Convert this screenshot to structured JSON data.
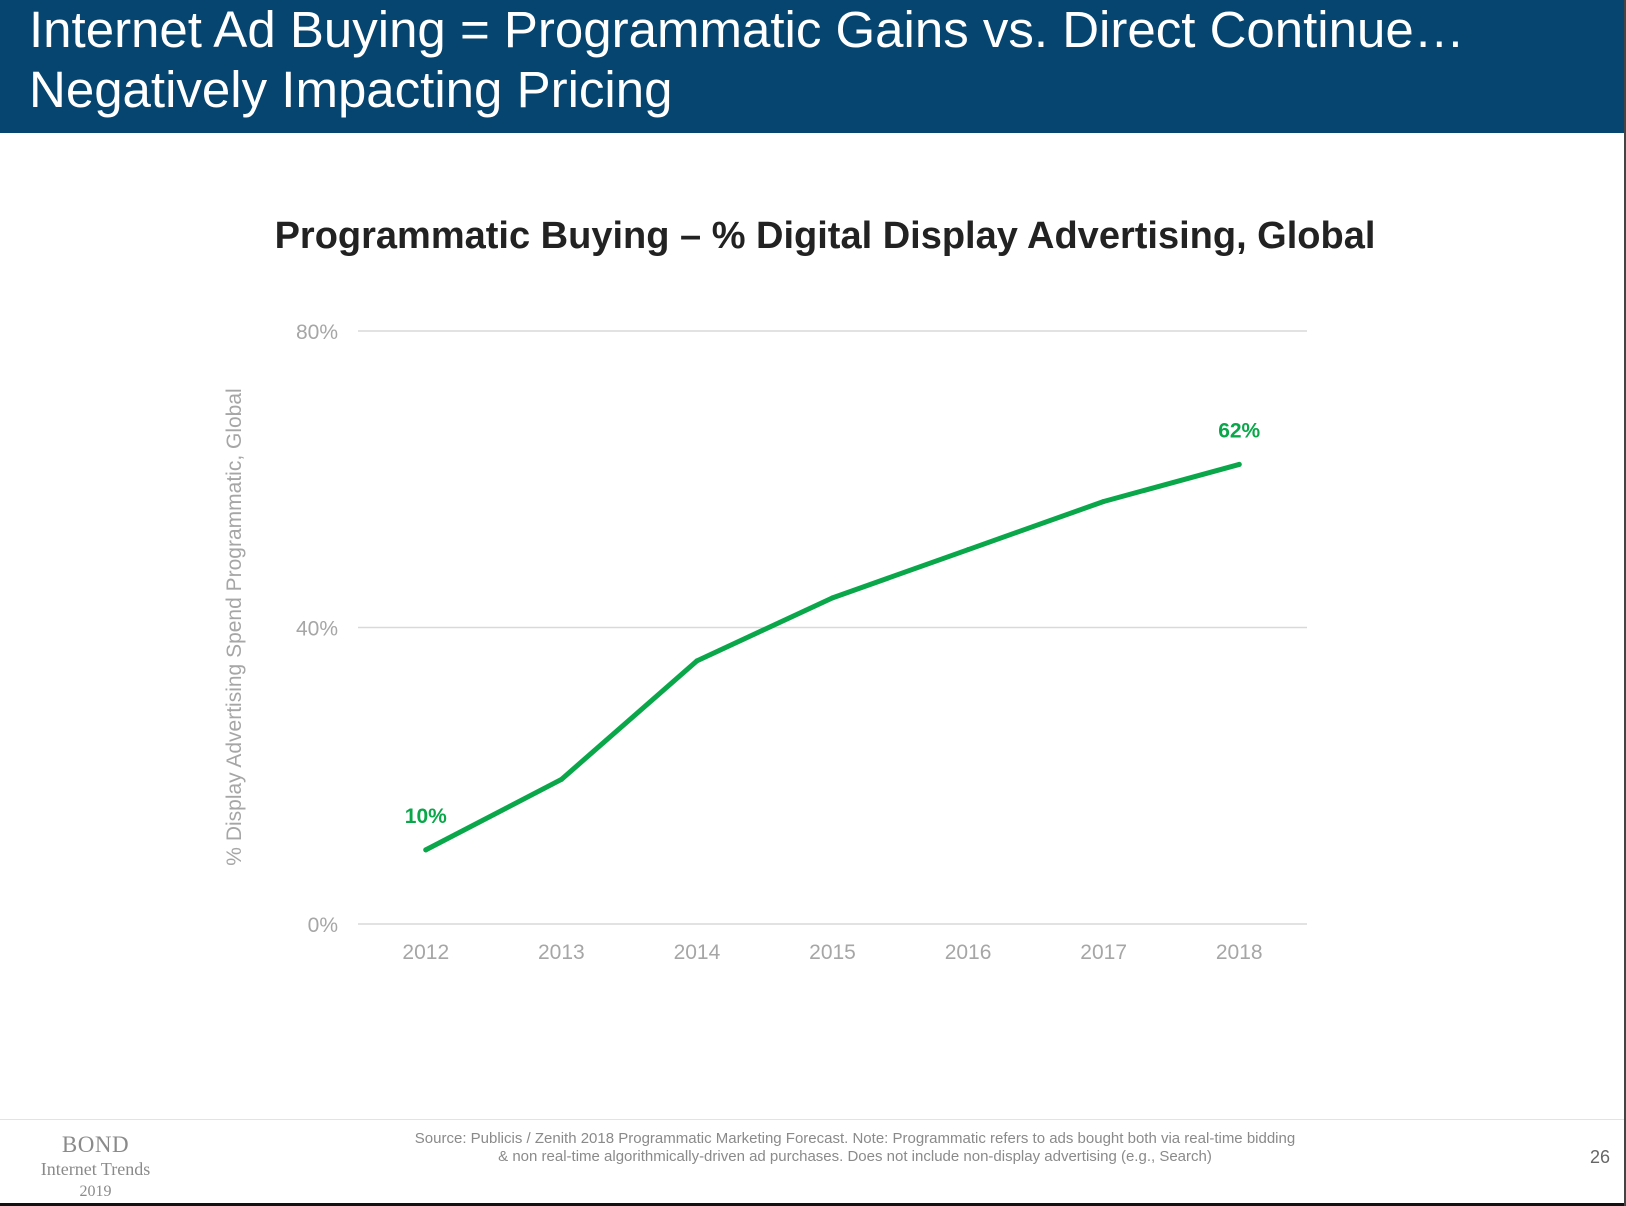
{
  "slide": {
    "title_line1": "Internet Ad Buying = Programmatic Gains vs. Direct Continue…",
    "title_line2": "Negatively Impacting Pricing",
    "page_number": "26"
  },
  "footer": {
    "logo_brand": "BOND",
    "logo_sub": "Internet Trends",
    "logo_year": "2019",
    "source_line1": "Source: Publicis / Zenith 2018 Programmatic Marketing Forecast.  Note: Programmatic refers to ads bought both via real-time bidding",
    "source_line2": "& non real-time algorithmically-driven ad purchases.  Does not include non-display advertising (e.g., Search)"
  },
  "colors": {
    "header_bg": "#054570",
    "line": "#0aa74a",
    "label": "#0aa74a",
    "axis_text": "#a6a6a6",
    "grid": "#d9d9d9"
  },
  "chart_data": {
    "type": "line",
    "title": "Programmatic Buying – % Digital Display Advertising, Global",
    "xlabel": "",
    "ylabel": "% Display Advertising Spend Programmatic, Global",
    "x": [
      "2012",
      "2013",
      "2014",
      "2015",
      "2016",
      "2017",
      "2018"
    ],
    "series": [
      {
        "values": [
          10,
          19.5,
          35.5,
          44,
          50.5,
          57,
          62
        ]
      }
    ],
    "data_labels": [
      {
        "index": 0,
        "text": "10%"
      },
      {
        "index": 6,
        "text": "62%"
      }
    ],
    "yticks": [
      "0%",
      "40%",
      "80%"
    ],
    "ytick_values": [
      0,
      40,
      80
    ],
    "ylim": [
      0,
      80
    ],
    "grid": "horizontal",
    "legend": "none"
  }
}
